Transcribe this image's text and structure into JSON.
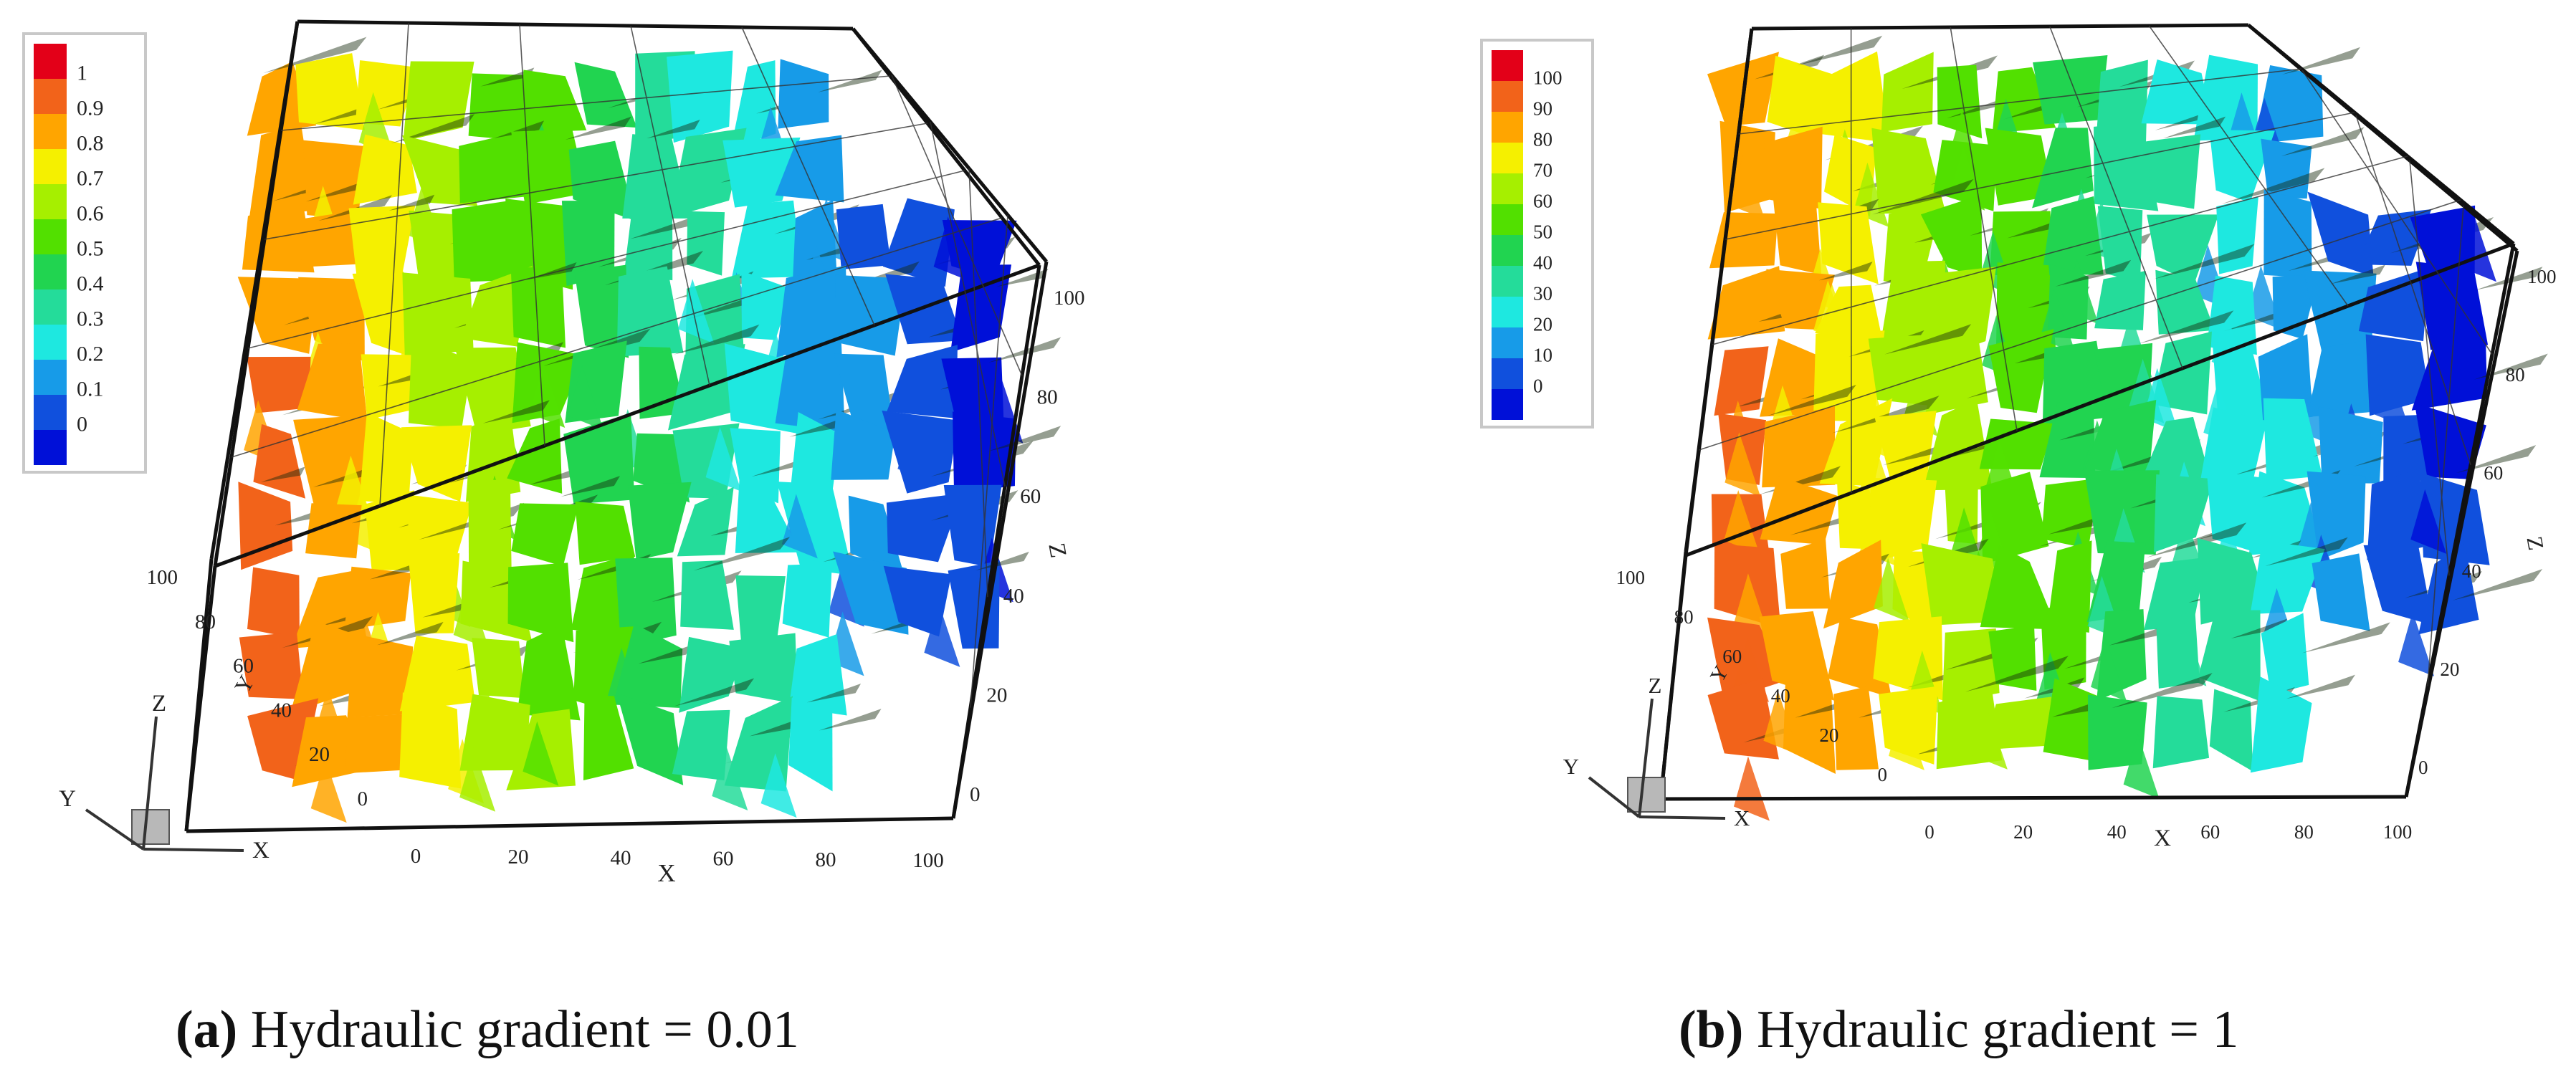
{
  "panels": [
    {
      "id": "a",
      "caption_label": "(a)",
      "caption_text": " Hydraulic gradient = 0.01",
      "legend": [
        "1",
        "0.9",
        "0.8",
        "0.7",
        "0.6",
        "0.5",
        "0.4",
        "0.3",
        "0.2",
        "0.1",
        "0"
      ],
      "x_ticks": [
        "0",
        "20",
        "40",
        "60",
        "80",
        "100"
      ],
      "y_ticks": [
        "100",
        "80",
        "60",
        "40",
        "20",
        "0"
      ],
      "z_ticks": [
        "100",
        "80",
        "60",
        "40",
        "20",
        "0"
      ],
      "x_axis_label": "X",
      "y_axis_label": "Y",
      "z_axis_label": "Z",
      "triad": {
        "x": "X",
        "y": "Y",
        "z": "Z"
      }
    },
    {
      "id": "b",
      "caption_label": "(b)",
      "caption_text": " Hydraulic gradient = 1",
      "legend": [
        "100",
        "90",
        "80",
        "70",
        "60",
        "50",
        "40",
        "30",
        "20",
        "10",
        "0"
      ],
      "x_ticks": [
        "0",
        "20",
        "40",
        "60",
        "80",
        "100"
      ],
      "y_ticks": [
        "100",
        "80",
        "60",
        "40",
        "20",
        "0"
      ],
      "z_ticks": [
        "100",
        "80",
        "60",
        "40",
        "20",
        "0"
      ],
      "x_axis_label": "X",
      "y_axis_label": "Y",
      "z_axis_label": "Z",
      "triad": {
        "x": "X",
        "y": "Y",
        "z": "Z"
      }
    }
  ],
  "colors": {
    "scale": [
      "#e30018",
      "#f2631a",
      "#ffa500",
      "#f5f000",
      "#a6ef00",
      "#52e000",
      "#21d450",
      "#24dc9a",
      "#1ee8e0",
      "#179be8",
      "#1050dd",
      "#0010d8"
    ]
  }
}
